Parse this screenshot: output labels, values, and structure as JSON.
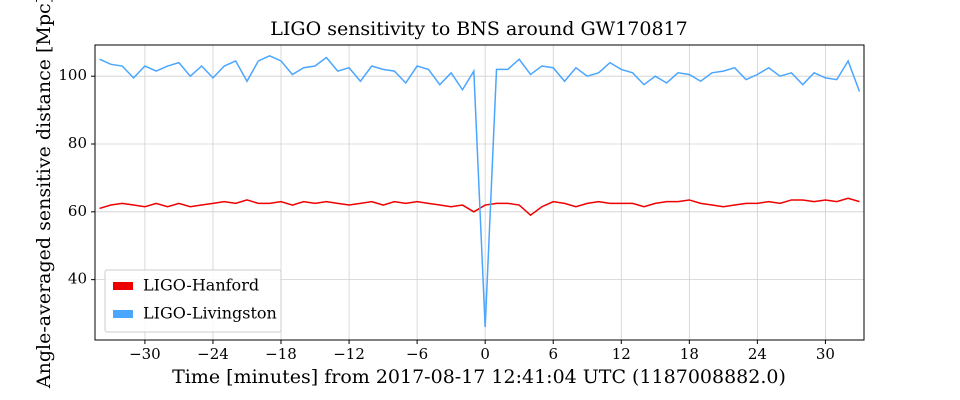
{
  "chart_data": {
    "type": "line",
    "title": "LIGO sensitivity to BNS around GW170817",
    "x_label": "Time [minutes] from 2017-08-17 12:41:04 UTC (1187008882.0)",
    "y_label": "Angle-averaged sensitive distance [Mpc]",
    "x": [
      -34,
      -33,
      -32,
      -31,
      -30,
      -29,
      -28,
      -27,
      -26,
      -25,
      -24,
      -23,
      -22,
      -21,
      -20,
      -19,
      -18,
      -17,
      -16,
      -15,
      -14,
      -13,
      -12,
      -11,
      -10,
      -9,
      -8,
      -7,
      -6,
      -5,
      -4,
      -3,
      -2,
      -1,
      0,
      1,
      2,
      3,
      4,
      5,
      6,
      7,
      8,
      9,
      10,
      11,
      12,
      13,
      14,
      15,
      16,
      17,
      18,
      19,
      20,
      21,
      22,
      23,
      24,
      25,
      26,
      27,
      28,
      29,
      30,
      31,
      32,
      33
    ],
    "series": [
      {
        "name": "LIGO-Hanford",
        "color": "#ee0000",
        "values": [
          61,
          62,
          62.5,
          62,
          61.5,
          62.5,
          61.5,
          62.5,
          61.5,
          62,
          62.5,
          63,
          62.5,
          63.5,
          62.5,
          62.5,
          63,
          62,
          63,
          62.5,
          63,
          62.5,
          62,
          62.5,
          63,
          62,
          63,
          62.5,
          63,
          62.5,
          62,
          61.5,
          62,
          60,
          62,
          62.5,
          62.5,
          62,
          59,
          61.5,
          63,
          62.5,
          61.5,
          62.5,
          63,
          62.5,
          62.5,
          62.5,
          61.5,
          62.5,
          63,
          63,
          63.5,
          62.5,
          62,
          61.5,
          62,
          62.5,
          62.5,
          63,
          62.5,
          63.5,
          63.5,
          63,
          63.5,
          63,
          64,
          63
        ]
      },
      {
        "name": "LIGO-Livingston",
        "color": "#4ba6ff",
        "values": [
          105,
          103.5,
          103,
          99.5,
          103,
          101.5,
          103,
          104,
          100,
          103,
          99.5,
          103,
          104.5,
          98.5,
          104.5,
          106,
          104.5,
          100.5,
          102.5,
          103,
          105.5,
          101.5,
          102.5,
          98.5,
          103,
          102,
          101.5,
          98,
          103,
          102,
          97.5,
          101,
          96,
          101.5,
          26,
          102,
          102,
          105,
          100.5,
          103,
          102.5,
          98.5,
          102.5,
          100,
          101,
          104,
          102,
          101,
          97.5,
          100,
          98,
          101,
          100.5,
          98.5,
          101,
          101.5,
          102.5,
          99,
          100.5,
          102.5,
          100,
          101,
          97.5,
          101,
          99.5,
          99,
          104.5,
          95.5
        ]
      }
    ],
    "xlim": [
      -34.4,
      33.4
    ],
    "ylim": [
      22.2,
      109.2
    ],
    "xticks": [
      {
        "value": -30,
        "label": "−30"
      },
      {
        "value": -24,
        "label": "−24"
      },
      {
        "value": -18,
        "label": "−18"
      },
      {
        "value": -12,
        "label": "−12"
      },
      {
        "value": -6,
        "label": "−6"
      },
      0,
      6,
      12,
      18,
      24,
      30
    ],
    "yticks": [
      40,
      60,
      80,
      100
    ],
    "grid": true,
    "legend": "lower left"
  }
}
